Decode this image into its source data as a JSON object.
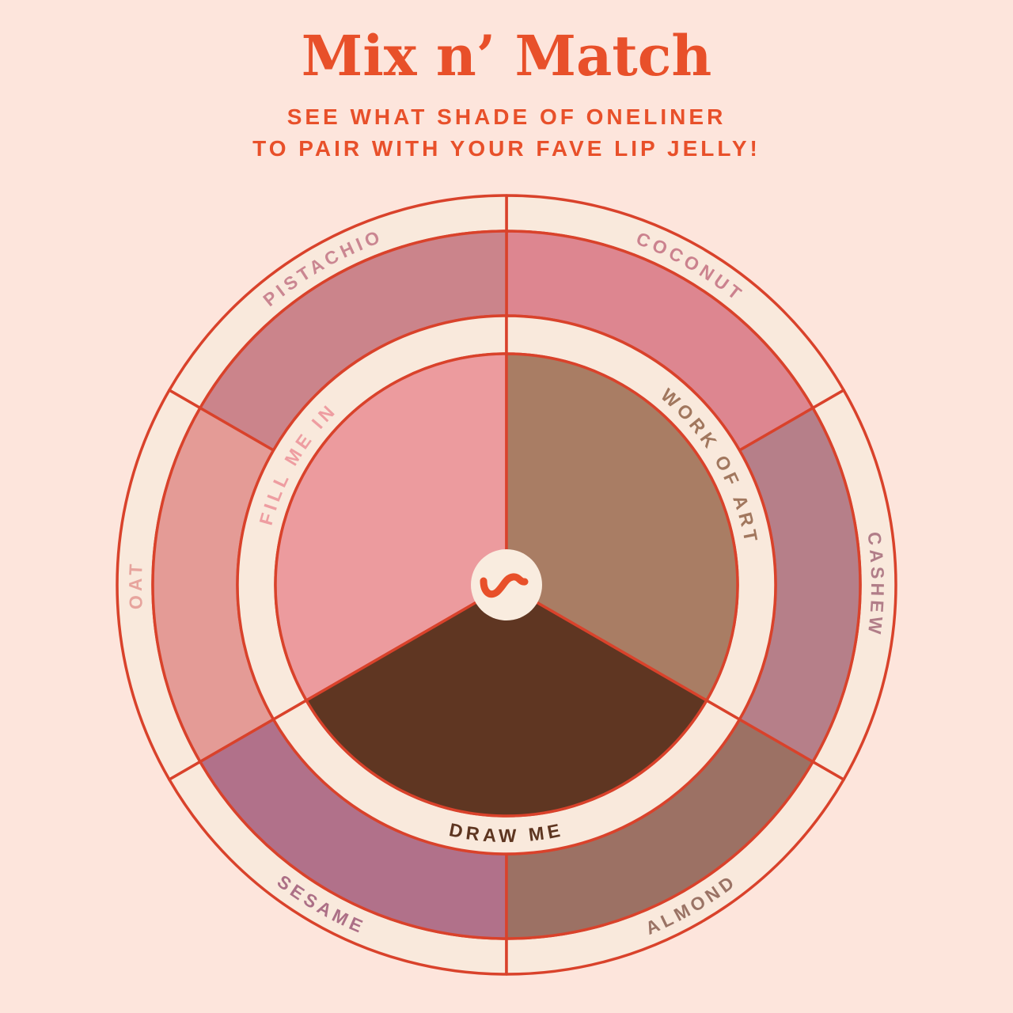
{
  "header": {
    "title": "Mix n’ Match",
    "subtitle_line1": "SEE WHAT SHADE OF ONELINER",
    "subtitle_line2": "TO PAIR WITH YOUR FAVE LIP JELLY!"
  },
  "colors": {
    "background": "#fde5dc",
    "band_cream": "#f9e9dc",
    "line_red": "#d9422b",
    "accent_orange": "#e8502a",
    "center_disc": "#f9ecdf"
  },
  "wheel": {
    "center_logo_icon": "squiggle-icon",
    "outer_segments": [
      {
        "label": "COCONUT",
        "color": "#dd8690",
        "label_color": "#cb828e",
        "start_angle": 30,
        "end_angle": 90
      },
      {
        "label": "PISTACHIO",
        "color": "#cb848b",
        "label_color": "#ca8691",
        "start_angle": 90,
        "end_angle": 150
      },
      {
        "label": "OAT",
        "color": "#e49b96",
        "label_color": "#e7a49d",
        "start_angle": 150,
        "end_angle": 210
      },
      {
        "label": "SESAME",
        "color": "#b1718a",
        "label_color": "#ac6f86",
        "start_angle": 210,
        "end_angle": 270
      },
      {
        "label": "ALMOND",
        "color": "#9c7164",
        "label_color": "#9a7365",
        "start_angle": 270,
        "end_angle": 330
      },
      {
        "label": "CASHEW",
        "color": "#b67f89",
        "label_color": "#b17d88",
        "start_angle": 330,
        "end_angle": 390
      }
    ],
    "inner_wedges": [
      {
        "label": "FILL ME IN",
        "color": "#ec9b9e",
        "label_color": "#ee9da1",
        "start_angle": 90,
        "end_angle": 210
      },
      {
        "label": "DRAW ME",
        "color": "#5f3622",
        "label_color": "#5d3520",
        "start_angle": 210,
        "end_angle": 330
      },
      {
        "label": "WORK OF ART",
        "color": "#a97d64",
        "label_color": "#a1775e",
        "start_angle": 330,
        "end_angle": 450
      }
    ]
  }
}
